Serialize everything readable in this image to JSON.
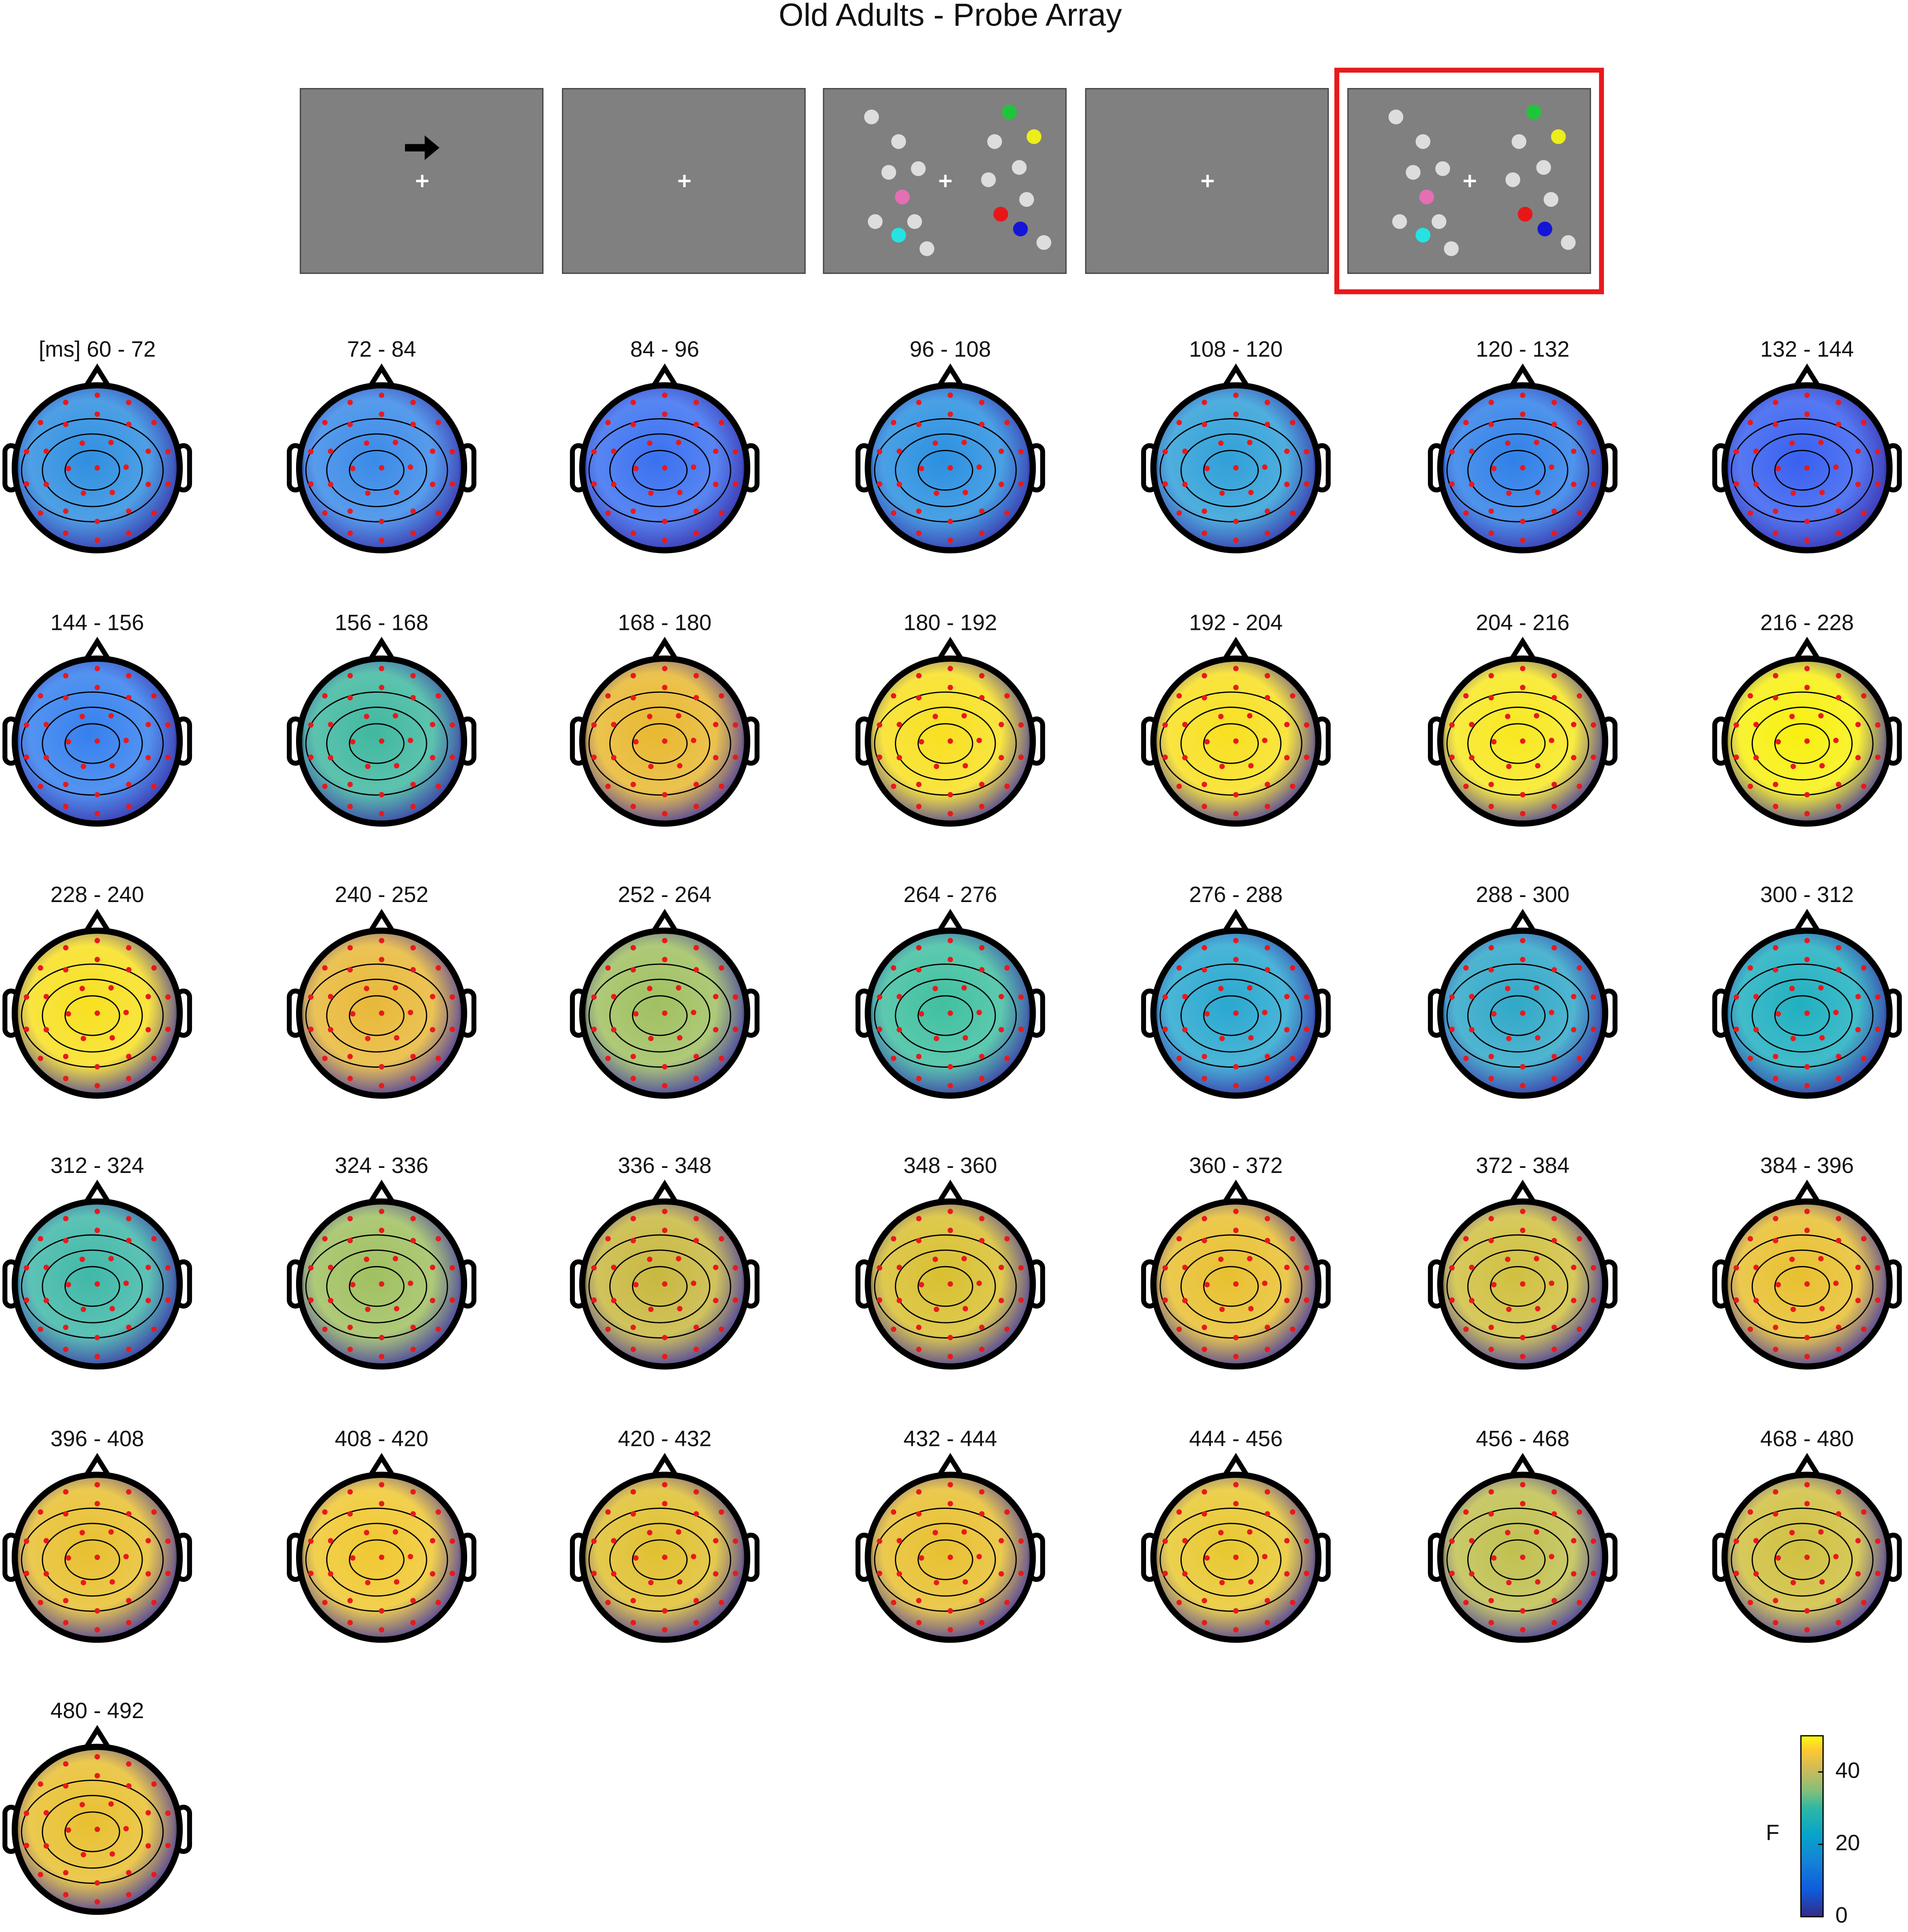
{
  "title": "Old Adults - Probe Array",
  "maps": [
    {
      "label": "[ms] 60 - 72",
      "color": "#2f8fe0"
    },
    {
      "label": "72 - 84",
      "color": "#3a8ae8"
    },
    {
      "label": "84 - 96",
      "color": "#3a70f0"
    },
    {
      "label": "96 - 108",
      "color": "#2a90e0"
    },
    {
      "label": "108 - 120",
      "color": "#30a0d8"
    },
    {
      "label": "120 - 132",
      "color": "#3080e8"
    },
    {
      "label": "132 - 144",
      "color": "#3860f0"
    },
    {
      "label": "144 - 156",
      "color": "#3580ee"
    },
    {
      "label": "156 - 168",
      "color": "#40b8a0"
    },
    {
      "label": "168 - 180",
      "color": "#e8b830"
    },
    {
      "label": "180 - 192",
      "color": "#f8e020"
    },
    {
      "label": "192 - 204",
      "color": "#f8e020"
    },
    {
      "label": "204 - 216",
      "color": "#f8e820"
    },
    {
      "label": "216 - 228",
      "color": "#f8f010"
    },
    {
      "label": "228 - 240",
      "color": "#f8e020"
    },
    {
      "label": "240 - 252",
      "color": "#e8b838"
    },
    {
      "label": "252 - 264",
      "color": "#a0c060"
    },
    {
      "label": "264 - 276",
      "color": "#40c0a0"
    },
    {
      "label": "276 - 288",
      "color": "#2aa8d0"
    },
    {
      "label": "288 - 300",
      "color": "#30a8c8"
    },
    {
      "label": "300 - 312",
      "color": "#20b0c0"
    },
    {
      "label": "312 - 324",
      "color": "#40b8a8"
    },
    {
      "label": "324 - 336",
      "color": "#a0c060"
    },
    {
      "label": "336 - 348",
      "color": "#c8b840"
    },
    {
      "label": "348 - 360",
      "color": "#d8c030"
    },
    {
      "label": "360 - 372",
      "color": "#e8c030"
    },
    {
      "label": "372 - 384",
      "color": "#d0c040"
    },
    {
      "label": "384 - 396",
      "color": "#e8c030"
    },
    {
      "label": "396 - 408",
      "color": "#e8c030"
    },
    {
      "label": "408 - 420",
      "color": "#f0c830"
    },
    {
      "label": "420 - 432",
      "color": "#e0c030"
    },
    {
      "label": "432 - 444",
      "color": "#e8c030"
    },
    {
      "label": "444 - 456",
      "color": "#e8c830"
    },
    {
      "label": "456 - 468",
      "color": "#c0c050"
    },
    {
      "label": "468 - 480",
      "color": "#d0c040"
    },
    {
      "label": "480 - 492",
      "color": "#e8c030"
    }
  ],
  "colorbar": {
    "label": "F",
    "lim": [
      0,
      50
    ],
    "ticks": [
      0,
      20,
      40
    ]
  }
}
